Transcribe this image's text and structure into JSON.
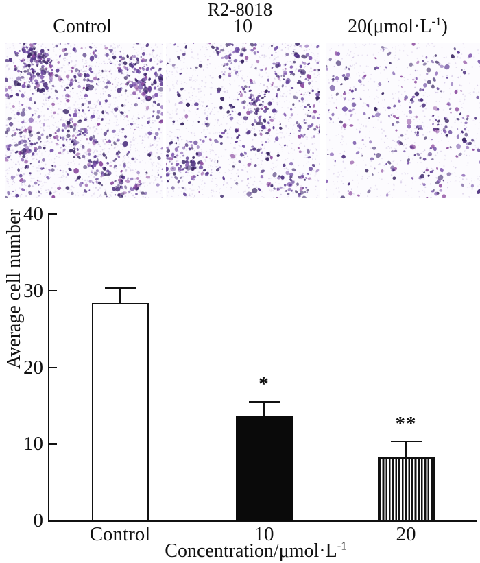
{
  "header": {
    "title": "R2-8018",
    "col_labels": [
      "Control",
      "10"
    ],
    "col3_prefix": "20(μmol·L",
    "col3_sup": "-1",
    "col3_suffix": ")"
  },
  "micrographs": {
    "description": "crystal-violet stained transwell migration micrographs",
    "background": "#fcfbfe",
    "speckle_colors": [
      "#ded5ec",
      "#cfc3e2",
      "#e6dff1"
    ],
    "cell_palette": [
      "#3f2a6e",
      "#4a2d7c",
      "#5b3a92",
      "#6d4aa3",
      "#7e55ad",
      "#8b4a9e",
      "#34205e"
    ],
    "panels": [
      {
        "name": "control",
        "cell_count": 780
      },
      {
        "name": "10-umol",
        "cell_count": 520
      },
      {
        "name": "20-umol",
        "cell_count": 290
      }
    ]
  },
  "chart_data": {
    "type": "bar",
    "categories": [
      "Control",
      "10",
      "20"
    ],
    "values": [
      28.3,
      13.6,
      8.1
    ],
    "errors_upper": [
      2.0,
      1.9,
      2.2
    ],
    "significance": [
      "",
      "*",
      "**"
    ],
    "bar_styles": [
      "open-white",
      "solid-black",
      "vertical-hatch"
    ],
    "ylabel": "Average cell number",
    "xlabel_prefix": "Concentration/μmol·L",
    "xlabel_sup": "-1",
    "ylim": [
      0,
      40
    ],
    "yticks": [
      0,
      10,
      20,
      30,
      40
    ],
    "grid": false,
    "legend": "none",
    "axis_color": "#111111"
  }
}
